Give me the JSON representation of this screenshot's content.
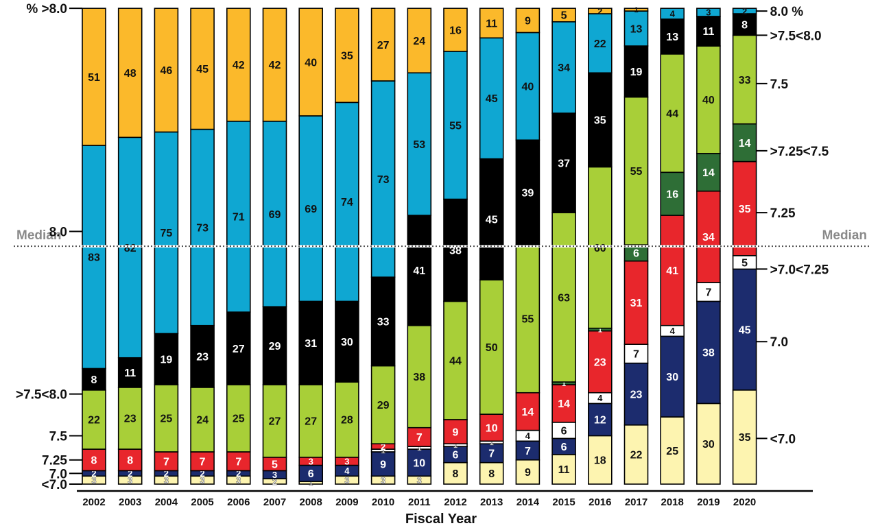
{
  "chart_data": {
    "type": "bar",
    "stacked": true,
    "xlabel": "Fiscal Year",
    "categories": [
      "2002",
      "2003",
      "2004",
      "2005",
      "2006",
      "2007",
      "2008",
      "2009",
      "2010",
      "2011",
      "2012",
      "2013",
      "2014",
      "2015",
      "2016",
      "2017",
      "2018",
      "2019",
      "2020"
    ],
    "series": [
      {
        "key": "lt70",
        "color": "#fdf4b0",
        "text_color": "#111111",
        "values": [
          3,
          3,
          3,
          3,
          3,
          2,
          1,
          3,
          3,
          3,
          8,
          8,
          9,
          11,
          18,
          22,
          25,
          30,
          35
        ]
      },
      {
        "key": "eq70",
        "color": "#1c2c6e",
        "text_color": "#ffffff",
        "values": [
          2,
          2,
          2,
          2,
          2,
          3,
          6,
          4,
          9,
          10,
          6,
          7,
          7,
          6,
          12,
          23,
          30,
          38,
          45
        ]
      },
      {
        "key": "gt70lt725",
        "color": "#ffffff",
        "text_color": "#111111",
        "values": [
          0,
          0,
          0,
          0,
          0,
          0,
          0,
          0,
          1,
          1,
          1,
          1,
          4,
          6,
          4,
          7,
          4,
          7,
          5
        ]
      },
      {
        "key": "eq725",
        "color": "#e8262c",
        "text_color": "#ffffff",
        "values": [
          8,
          8,
          7,
          7,
          7,
          5,
          3,
          3,
          2,
          7,
          9,
          10,
          14,
          14,
          23,
          31,
          41,
          34,
          35
        ]
      },
      {
        "key": "gt725lt75",
        "color": "#2e6e36",
        "text_color": "#ffffff",
        "values": [
          0,
          0,
          0,
          0,
          0,
          0,
          0,
          0,
          0,
          0,
          0,
          0,
          0,
          1,
          1,
          6,
          16,
          14,
          14
        ]
      },
      {
        "key": "eq75",
        "color": "#a8cf38",
        "text_color": "#111111",
        "values": [
          22,
          23,
          25,
          24,
          25,
          27,
          27,
          28,
          29,
          38,
          44,
          50,
          55,
          63,
          60,
          55,
          44,
          40,
          33
        ]
      },
      {
        "key": "gt75lt80",
        "color": "#000000",
        "text_color": "#ffffff",
        "values": [
          8,
          11,
          19,
          23,
          27,
          29,
          31,
          30,
          33,
          41,
          38,
          45,
          39,
          37,
          35,
          19,
          13,
          11,
          8
        ]
      },
      {
        "key": "eq80",
        "color": "#0fa7d2",
        "text_color": "#111111",
        "values": [
          83,
          82,
          75,
          73,
          71,
          69,
          69,
          74,
          73,
          53,
          55,
          45,
          40,
          34,
          22,
          13,
          4,
          3,
          2
        ]
      },
      {
        "key": "gt80",
        "color": "#fbb92b",
        "text_color": "#111111",
        "values": [
          51,
          48,
          46,
          45,
          42,
          42,
          40,
          35,
          27,
          24,
          16,
          11,
          9,
          5,
          2,
          1,
          0,
          0,
          0
        ]
      }
    ],
    "left_axis_labels": [
      {
        "text": "% >8.0",
        "at": 177
      },
      {
        "text": "8.0",
        "at": 94
      },
      {
        "text": ">7.5<8.0",
        "at": 33.5
      },
      {
        "text": "7.5",
        "at": 18
      },
      {
        "text": "7.25",
        "at": 9
      },
      {
        "text": "7.0",
        "at": 4
      },
      {
        "text": "<7.0",
        "at": 0
      }
    ],
    "right_axis_labels": [
      {
        "text": "8.0 %",
        "at": 176
      },
      {
        "text": ">7.5<8.0",
        "at": 167
      },
      {
        "text": "7.5",
        "at": 149
      },
      {
        "text": ">7.25<7.5",
        "at": 124
      },
      {
        "text": "7.25",
        "at": 101
      },
      {
        "text": ">7.0<7.25",
        "at": 80
      },
      {
        "text": "7.0",
        "at": 53
      },
      {
        "text": "<7.0",
        "at": 17
      }
    ],
    "median_label": "Median",
    "median_at": 88.5
  }
}
